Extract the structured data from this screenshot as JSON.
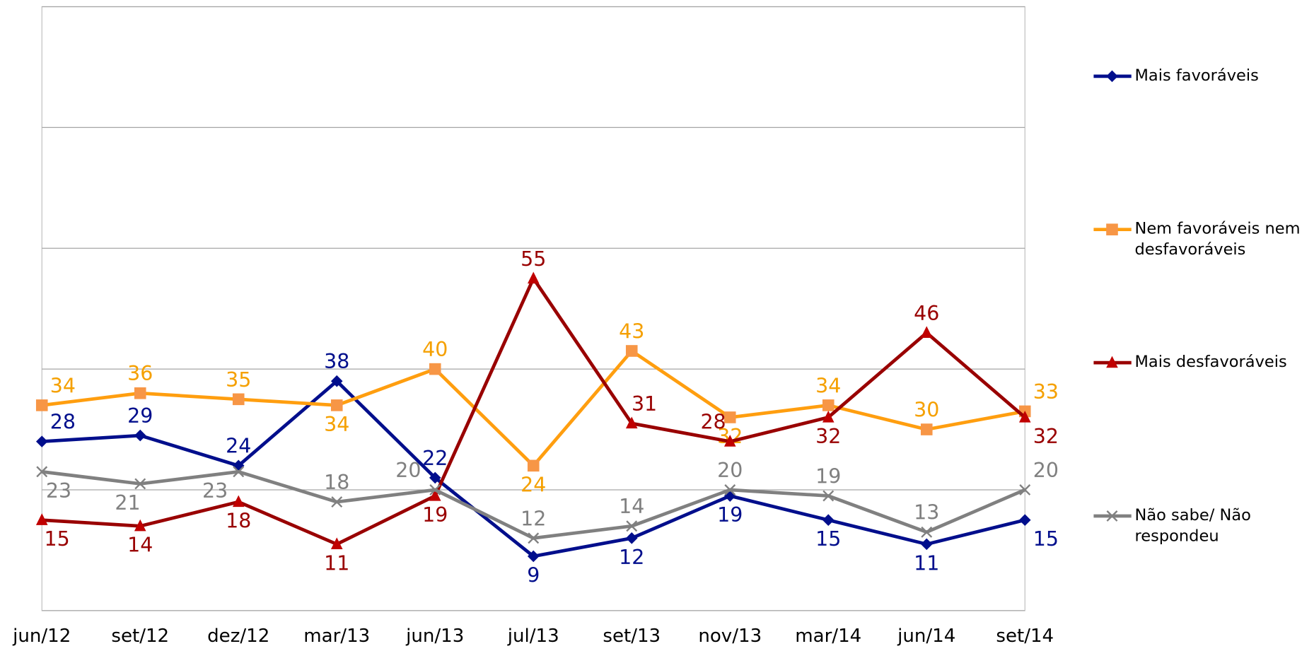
{
  "chart_data": {
    "type": "line",
    "categories": [
      "jun/12",
      "set/12",
      "dez/12",
      "mar/13",
      "jun/13",
      "jul/13",
      "set/13",
      "nov/13",
      "mar/14",
      "jun/14",
      "set/14"
    ],
    "series": [
      {
        "name": "Mais favoráveis",
        "color": "#000e8c",
        "marker": "diamond",
        "values": [
          28,
          29,
          24,
          38,
          22,
          9,
          12,
          19,
          15,
          11,
          15
        ]
      },
      {
        "name": "Nem favoráveis nem desfavoráveis",
        "color": "#ff9e0f",
        "marker": "square",
        "values": [
          34,
          36,
          35,
          34,
          40,
          24,
          43,
          32,
          34,
          30,
          33
        ]
      },
      {
        "name": "Mais desfavoráveis",
        "color": "#990000",
        "marker": "triangle",
        "values": [
          15,
          14,
          18,
          11,
          19,
          55,
          31,
          28,
          32,
          46,
          32
        ]
      },
      {
        "name": "Não sabe/ Não respondeu",
        "color": "#808080",
        "marker": "x",
        "values": [
          23,
          21,
          23,
          18,
          20,
          12,
          14,
          20,
          19,
          13,
          20
        ]
      }
    ],
    "ylim": [
      0,
      100
    ],
    "yticks": [
      0,
      20,
      40,
      60,
      80,
      100
    ],
    "grid": true,
    "legend": "right"
  }
}
